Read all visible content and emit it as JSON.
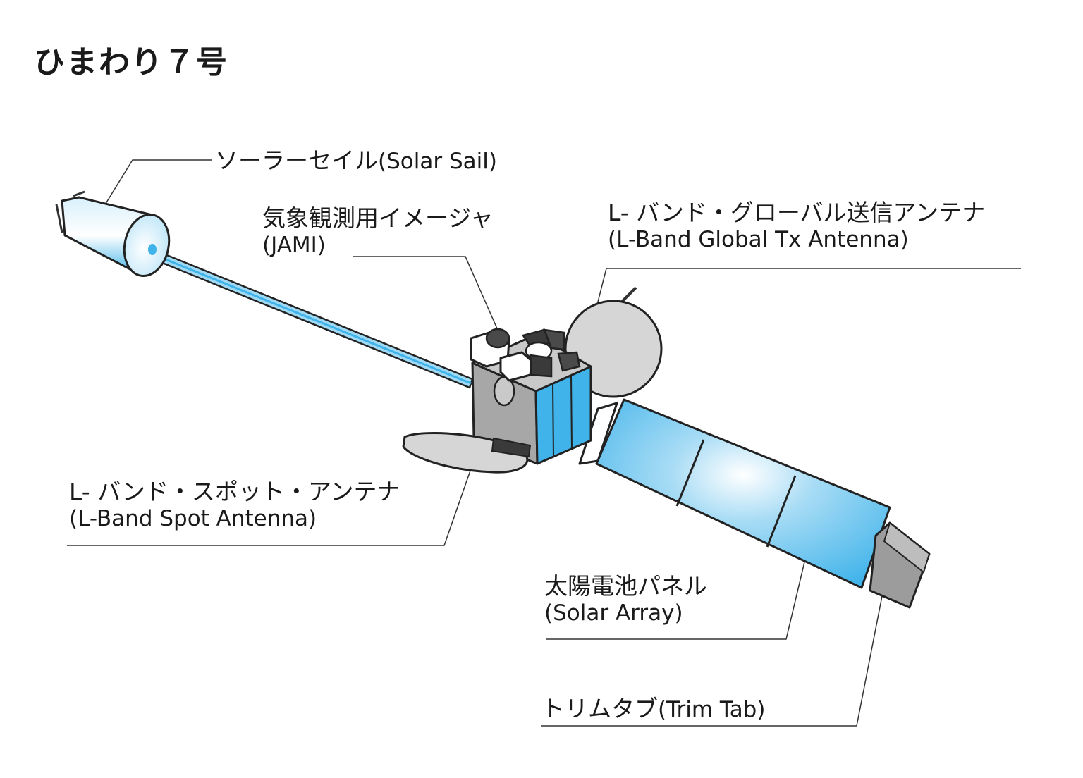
{
  "title": "ひまわり７号",
  "colors": {
    "panel_blue": "#3fb3ea",
    "body_gray": "#a7a7a7",
    "antenna_gray": "#d6d6d6",
    "outline": "#222222"
  },
  "labels": {
    "solar_sail": {
      "ja": "ソーラーセイル",
      "en": "(Solar Sail)"
    },
    "jami": {
      "ja": "気象観測用イメージャ",
      "en": "(JAMI)"
    },
    "global_antenna": {
      "ja": "L- バンド・グローバル送信アンテナ",
      "en": "(L-Band Global Tx Antenna)"
    },
    "spot_antenna": {
      "ja": "L- バンド・スポット・アンテナ",
      "en": "(L-Band Spot Antenna)"
    },
    "solar_array": {
      "ja": "太陽電池パネル",
      "en": "(Solar Array)"
    },
    "trim_tab": {
      "ja": "トリムタブ",
      "en": "(Trim Tab)"
    }
  }
}
